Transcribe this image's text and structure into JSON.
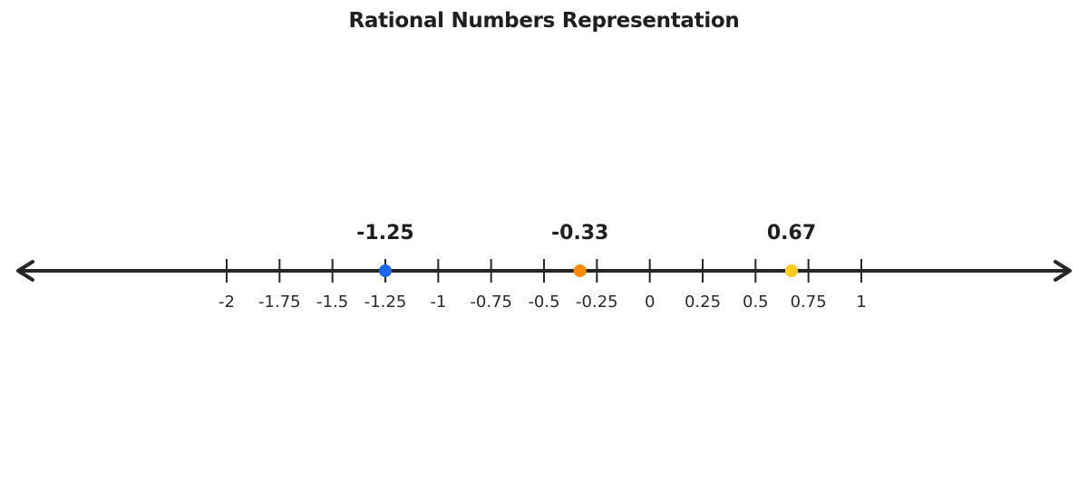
{
  "title": "Rational Numbers Representation",
  "chart_data": {
    "type": "number-line",
    "title": "Rational Numbers Representation",
    "xlim": [
      -2,
      1
    ],
    "tick_step": 0.25,
    "ticks": [
      {
        "value": -2,
        "label": "-2"
      },
      {
        "value": -1.75,
        "label": "-1.75"
      },
      {
        "value": -1.5,
        "label": "-1.5"
      },
      {
        "value": -1.25,
        "label": "-1.25"
      },
      {
        "value": -1,
        "label": "-1"
      },
      {
        "value": -0.75,
        "label": "-0.75"
      },
      {
        "value": -0.5,
        "label": "-0.5"
      },
      {
        "value": -0.25,
        "label": "-0.25"
      },
      {
        "value": 0,
        "label": "0"
      },
      {
        "value": 0.25,
        "label": "0.25"
      },
      {
        "value": 0.5,
        "label": "0.5"
      },
      {
        "value": 0.75,
        "label": "0.75"
      },
      {
        "value": 1,
        "label": "1"
      }
    ],
    "points": [
      {
        "value": -1.25,
        "label": "-1.25",
        "color": "#1a66f0"
      },
      {
        "value": -0.33,
        "label": "-0.33",
        "color": "#ff8c00"
      },
      {
        "value": 0.67,
        "label": "0.67",
        "color": "#ffcc1f"
      }
    ],
    "line_color": "#262626",
    "arrows": "both"
  }
}
